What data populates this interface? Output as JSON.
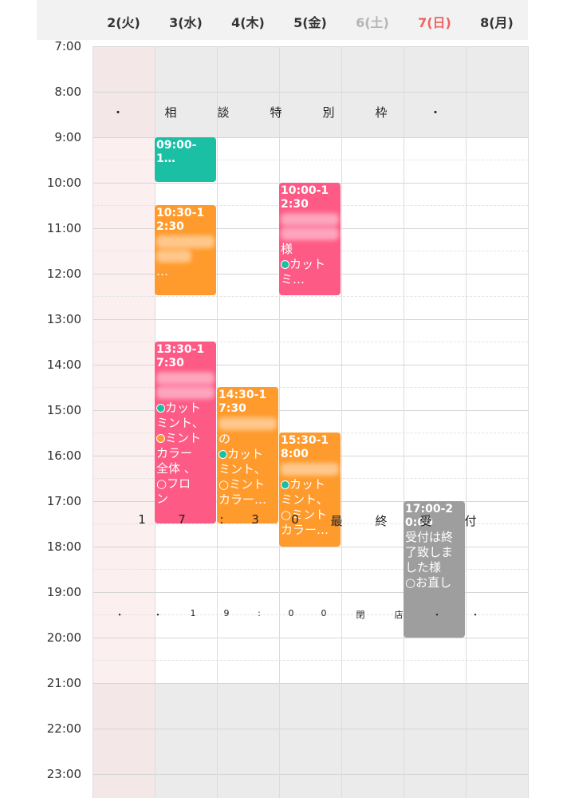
{
  "header": {
    "days": [
      {
        "label": "2(火)",
        "color": "#333333"
      },
      {
        "label": "3(水)",
        "color": "#333333"
      },
      {
        "label": "4(木)",
        "color": "#333333"
      },
      {
        "label": "5(金)",
        "color": "#333333"
      },
      {
        "label": "6(土)",
        "color": "#b5b5b5"
      },
      {
        "label": "7(日)",
        "color": "#f06262"
      },
      {
        "label": "8(月)",
        "color": "#333333"
      }
    ]
  },
  "times": [
    "7:00",
    "8:00",
    "9:00",
    "10:00",
    "11:00",
    "12:00",
    "13:00",
    "14:00",
    "15:00",
    "16:00",
    "17:00",
    "18:00",
    "19:00",
    "20:00",
    "21:00",
    "22:00",
    "23:00"
  ],
  "overlays": {
    "special": [
      "・",
      "相",
      "談",
      "特",
      "別",
      "枠",
      "・"
    ],
    "last_call": [
      "1",
      "7",
      ":",
      "3",
      "0",
      "最",
      "終",
      "受",
      "付"
    ],
    "closing": [
      "・",
      "・",
      "1",
      "9",
      ":",
      "0",
      "0",
      "閉",
      "店",
      "・",
      "・"
    ]
  },
  "colors": {
    "teal": "#1abfa4",
    "orange": "#ff9a2c",
    "pink": "#fe5a86",
    "gray": "#9e9e9e"
  },
  "events": [
    {
      "time": "09:00-1…",
      "lines": []
    },
    {
      "time": "10:30-12:30",
      "lines": [
        "…"
      ]
    },
    {
      "time": "13:30-17:30",
      "lines": [
        "カット",
        "ミント、",
        "ミント",
        "カラー",
        "全体 、",
        "フロ",
        "ン"
      ]
    },
    {
      "time": "14:30-17:30",
      "lines": [
        "の",
        "カット",
        "ミント、",
        "ミント",
        "カラー…"
      ]
    },
    {
      "time": "10:00-12:30",
      "lines": [
        "様",
        "カット",
        "ミ…"
      ]
    },
    {
      "time": "15:30-18:00",
      "lines": [
        "カット",
        "ミント、",
        "ミント",
        "カラー…"
      ]
    },
    {
      "time": "17:00-20:00",
      "lines": [
        "受付は終",
        "了致しま",
        "した様",
        "お直し"
      ]
    }
  ]
}
